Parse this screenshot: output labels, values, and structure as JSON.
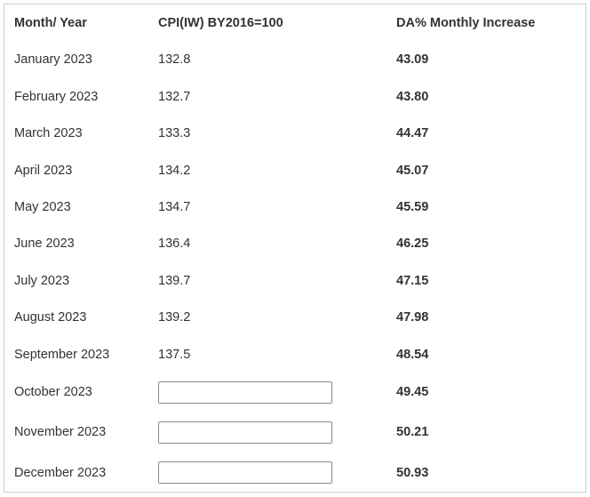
{
  "table": {
    "headers": {
      "month": "Month/ Year",
      "cpi": "CPI(IW) BY2016=100",
      "da": "DA% Monthly Increase"
    },
    "rows": [
      {
        "month": "January 2023",
        "cpi": "132.8",
        "da": "43.09"
      },
      {
        "month": "February 2023",
        "cpi": "132.7",
        "da": "43.80"
      },
      {
        "month": "March 2023",
        "cpi": "133.3",
        "da": "44.47"
      },
      {
        "month": "April 2023",
        "cpi": "134.2",
        "da": "45.07"
      },
      {
        "month": "May 2023",
        "cpi": "134.7",
        "da": "45.59"
      },
      {
        "month": "June 2023",
        "cpi": "136.4",
        "da": "46.25"
      },
      {
        "month": "July 2023",
        "cpi": "139.7",
        "da": "47.15"
      },
      {
        "month": "August 2023",
        "cpi": "139.2",
        "da": "47.98"
      },
      {
        "month": "September 2023",
        "cpi": "137.5",
        "da": "48.54"
      },
      {
        "month": "October 2023",
        "cpi_input": "",
        "da": "49.45"
      },
      {
        "month": "November 2023",
        "cpi_input": "",
        "da": "50.21"
      },
      {
        "month": "December 2023",
        "cpi_input": "",
        "da": "50.93"
      }
    ]
  }
}
